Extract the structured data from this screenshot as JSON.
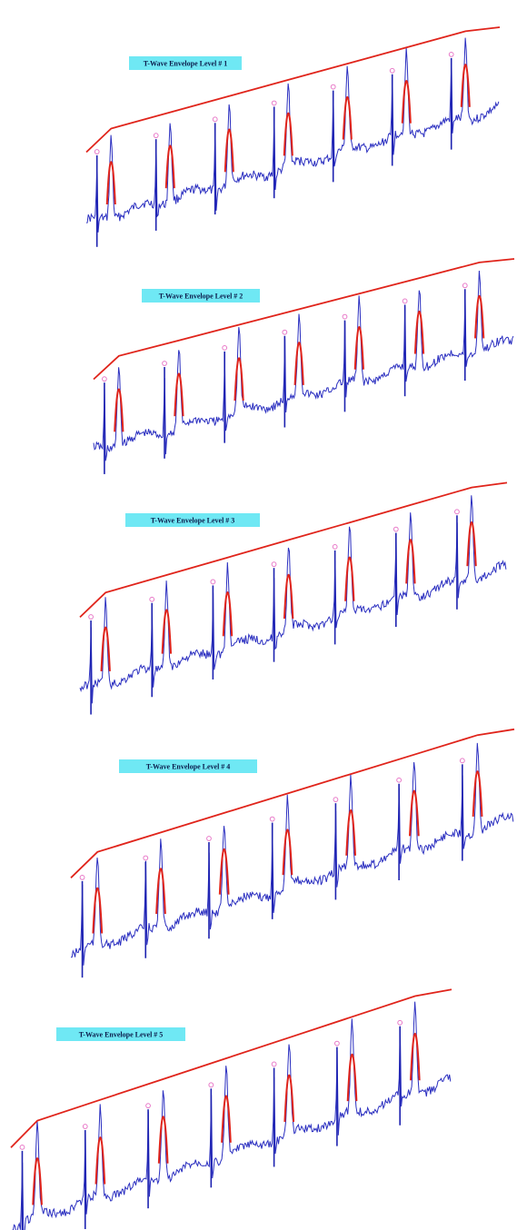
{
  "colors": {
    "background": "#ffffff",
    "ecg_trace": "#2b2fc0",
    "r_peak_spike": "#1d22b0",
    "envelope": "#e0241b",
    "peak_marker": "#e879c8",
    "label_background": "#6fe8f4",
    "label_text": "#0a1a4a"
  },
  "chart_data": [
    {
      "type": "line",
      "title": "T-Wave Envelope Level # 1",
      "series": [
        {
          "values": [
            0.0,
            0.05,
            0.35,
            0.12,
            0.88,
            0.3,
            0.55,
            0.95,
            0.55,
            0.6,
            0.46,
            0.9,
            0.45,
            0.92,
            0.58,
            0.95,
            0.72,
            0.7,
            0.98,
            0.75,
            0.8,
            0.74,
            1.0,
            0.76
          ]
        },
        {
          "values": [
            0.1,
            0.9,
            0.35,
            0.95,
            0.55,
            0.95,
            0.52,
            0.95,
            0.65,
            0.95,
            0.78,
            0.95,
            0.7
          ]
        },
        {
          "values": [
            0.0,
            0.1,
            0.35,
            0.6,
            0.9,
            0.95,
            1.0
          ]
        }
      ]
    },
    {
      "type": "line",
      "title": "T-Wave Envelope Level # 2",
      "series": [
        {
          "values": [
            0.0,
            0.05,
            0.35,
            0.12,
            0.88,
            0.3,
            0.55,
            0.95,
            0.55,
            0.6,
            0.46,
            0.9,
            0.45,
            0.92,
            0.58,
            0.95,
            0.72,
            0.7,
            0.98,
            0.75,
            0.8,
            0.74,
            1.0,
            0.76
          ]
        },
        {
          "values": [
            0.1,
            0.9,
            0.35,
            0.95,
            0.55,
            0.95,
            0.52,
            0.95,
            0.65,
            0.95,
            0.78,
            0.95,
            0.7
          ]
        },
        {
          "values": [
            0.0,
            0.1,
            0.35,
            0.6,
            0.9,
            0.95,
            1.0
          ]
        }
      ]
    },
    {
      "type": "line",
      "title": "T-Wave Envelope Level # 3",
      "series": [
        {
          "values": [
            0.0,
            0.05,
            0.35,
            0.12,
            0.88,
            0.3,
            0.55,
            0.95,
            0.55,
            0.6,
            0.46,
            0.9,
            0.45,
            0.92,
            0.58,
            0.95,
            0.72,
            0.7,
            0.98,
            0.75,
            0.8,
            0.74,
            1.0,
            0.76
          ]
        },
        {
          "values": [
            0.1,
            0.9,
            0.35,
            0.95,
            0.55,
            0.95,
            0.52,
            0.95,
            0.65,
            0.95,
            0.78,
            0.95,
            0.7
          ]
        },
        {
          "values": [
            0.0,
            0.1,
            0.35,
            0.6,
            0.9,
            0.95,
            1.0
          ]
        }
      ]
    },
    {
      "type": "line",
      "title": "T-Wave Envelope Level # 4",
      "series": [
        {
          "values": [
            0.0,
            0.05,
            0.35,
            0.12,
            0.88,
            0.3,
            0.55,
            0.95,
            0.55,
            0.6,
            0.46,
            0.9,
            0.45,
            0.92,
            0.58,
            0.95,
            0.72,
            0.7,
            0.98,
            0.75,
            0.8,
            0.74,
            1.0,
            0.76
          ]
        },
        {
          "values": [
            0.1,
            0.9,
            0.35,
            0.95,
            0.55,
            0.95,
            0.52,
            0.95,
            0.65,
            0.95,
            0.78,
            0.95,
            0.7
          ]
        },
        {
          "values": [
            0.0,
            0.1,
            0.35,
            0.6,
            0.9,
            0.95,
            1.0
          ]
        }
      ]
    },
    {
      "type": "line",
      "title": "T-Wave Envelope Level # 5",
      "series": [
        {
          "values": [
            0.0,
            0.05,
            0.35,
            0.12,
            0.88,
            0.3,
            0.55,
            0.95,
            0.55,
            0.6,
            0.46,
            0.9,
            0.45,
            0.92,
            0.58,
            0.95,
            0.72,
            0.7,
            0.98,
            0.75,
            0.8,
            0.74,
            1.0,
            0.76
          ]
        },
        {
          "values": [
            0.1,
            0.9,
            0.35,
            0.95,
            0.55,
            0.95,
            0.52,
            0.95,
            0.65,
            0.95,
            0.78,
            0.95,
            0.7
          ]
        },
        {
          "values": [
            0.0,
            0.1,
            0.35,
            0.6,
            0.9,
            0.95,
            1.0
          ]
        }
      ]
    }
  ]
}
